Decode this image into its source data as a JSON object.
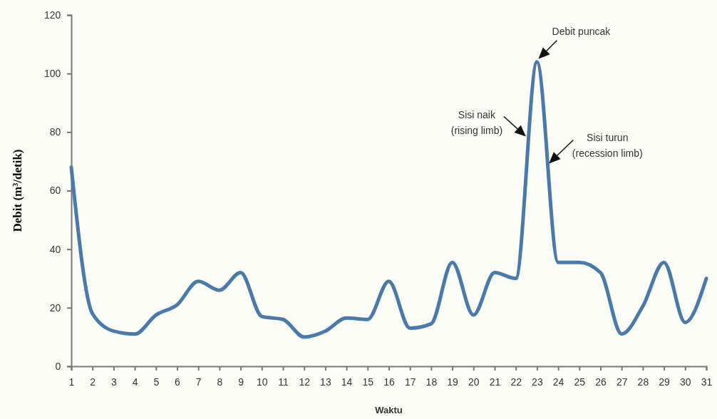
{
  "chart_data": {
    "type": "line",
    "xlabel": "Waktu",
    "ylabel": "Debit (m³/detik)",
    "x": [
      1,
      2,
      3,
      4,
      5,
      6,
      7,
      8,
      9,
      10,
      11,
      12,
      13,
      14,
      15,
      16,
      17,
      18,
      19,
      20,
      21,
      22,
      23,
      24,
      25,
      26,
      27,
      28,
      29,
      30,
      31
    ],
    "series": [
      {
        "color": "#4a7aac",
        "values": [
          68,
          18,
          12,
          11,
          17.5,
          21,
          29,
          26,
          32,
          17,
          16,
          10,
          12,
          16.5,
          16,
          29,
          13,
          14.5,
          35.5,
          17.5,
          32,
          30,
          104,
          35.5,
          35.5,
          32,
          11,
          20.5,
          35.5,
          15,
          30
        ]
      }
    ],
    "xlim": [
      1,
      31
    ],
    "xticks": [
      1,
      2,
      3,
      4,
      5,
      6,
      7,
      8,
      9,
      10,
      11,
      12,
      13,
      14,
      15,
      16,
      17,
      18,
      19,
      20,
      21,
      22,
      23,
      24,
      25,
      26,
      27,
      28,
      29,
      30,
      31
    ],
    "ylim": [
      0,
      120
    ],
    "yticks": [
      0,
      20,
      40,
      60,
      80,
      100,
      120
    ],
    "grid": false,
    "marker": "none",
    "line_style": "solid",
    "annotations": [
      {
        "text": "Debit puncak",
        "x": 23,
        "y": 104
      },
      {
        "text": "Sisi naik\n(rising limb)",
        "x": 22.58,
        "y": 78
      },
      {
        "text": "Sisi turun\n(recession limb)",
        "x": 23.5,
        "y": 69.5
      }
    ]
  }
}
